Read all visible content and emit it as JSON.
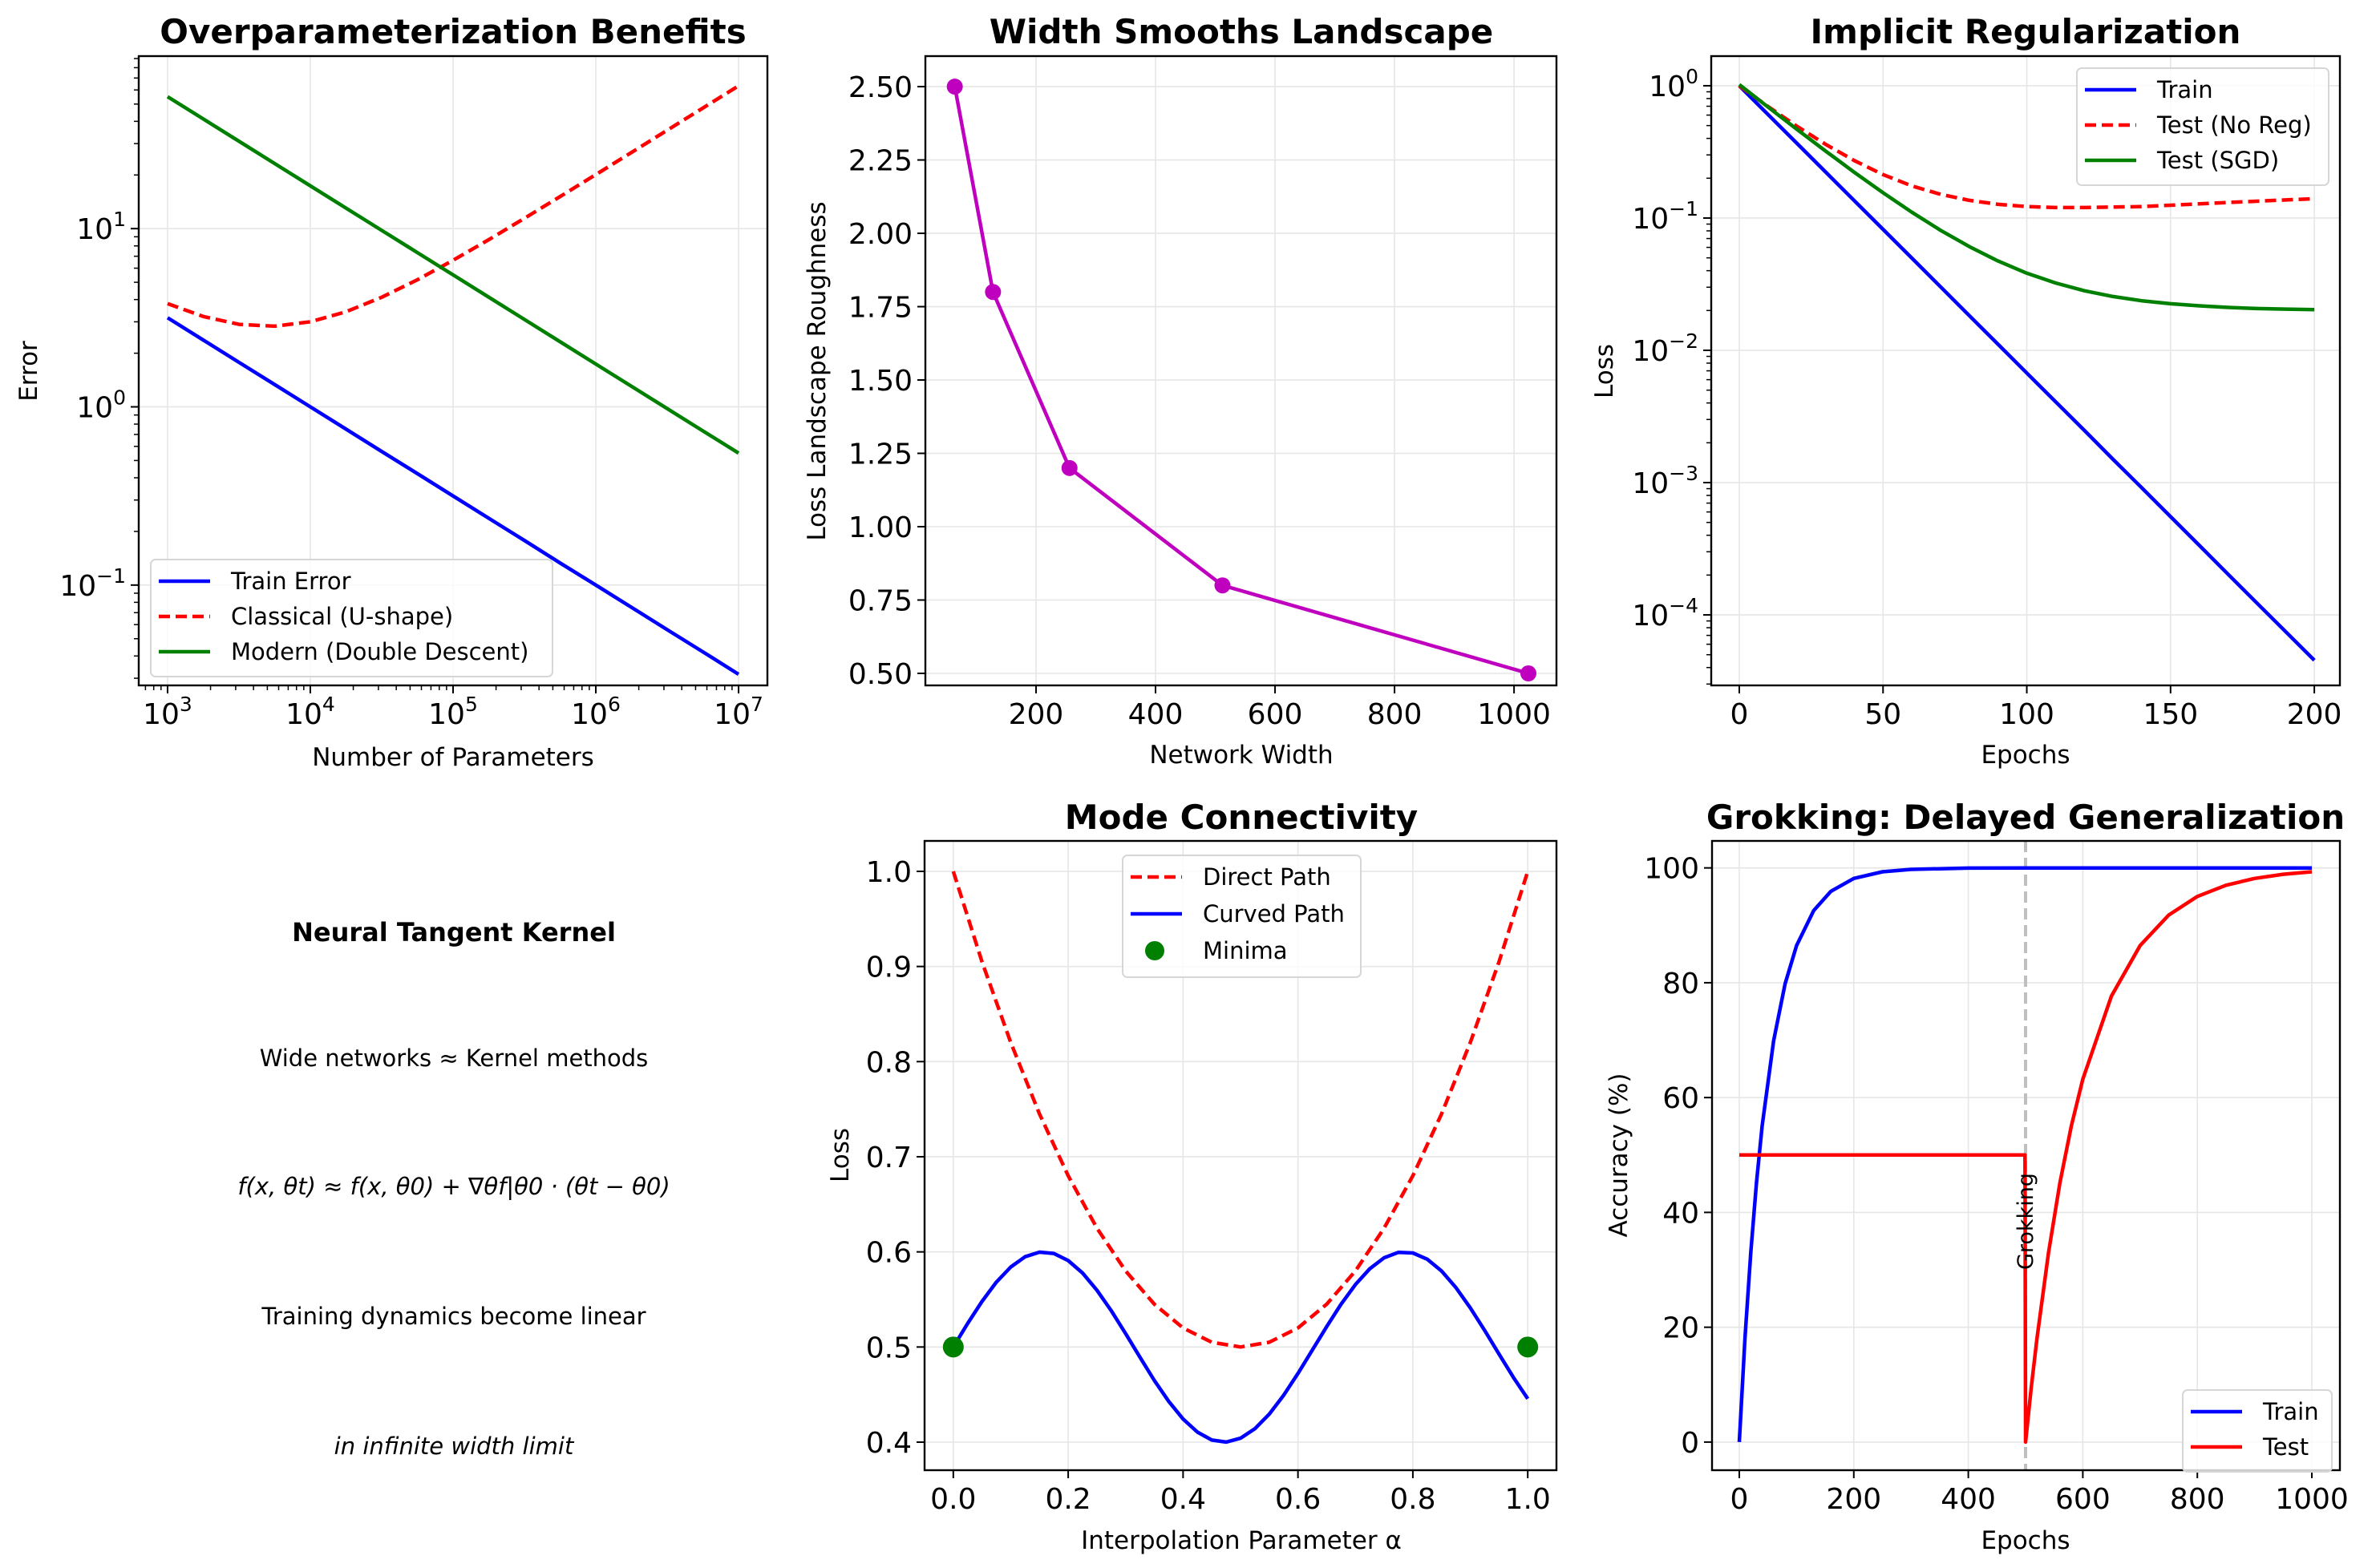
{
  "figure": {
    "ntk_panel": {
      "title": "Neural Tangent Kernel",
      "lines": [
        "Wide networks ≈ Kernel methods",
        "f(x, θt) ≈ f(x, θ0) + ∇θf|θ0 · (θt − θ0)",
        "Training dynamics become linear",
        "in infinite width limit"
      ]
    }
  },
  "chart_data": [
    {
      "id": "overparam",
      "type": "line",
      "title": "Overparameterization Benefits",
      "xlabel": "Number of Parameters",
      "ylabel": "Error",
      "xscale": "log",
      "yscale": "log",
      "xlim_log10": [
        2.798,
        7.202
      ],
      "ylim_log10": [
        -1.563,
        1.968
      ],
      "xticks_exp": [
        3,
        4,
        5,
        6,
        7
      ],
      "yticks_exp": [
        -1,
        0,
        1
      ],
      "grid": true,
      "legend": "lower-left",
      "x": [
        1000,
        1778,
        3162,
        5623,
        10000,
        17783,
        31623,
        56234,
        100000,
        177828,
        316228,
        562341,
        1000000,
        1778279,
        3162278,
        5623413,
        10000000
      ],
      "series": [
        {
          "name": "Train Error",
          "color": "#0000ff",
          "style": "solid",
          "values": [
            3.162,
            2.371,
            1.778,
            1.334,
            1.0,
            0.75,
            0.562,
            0.422,
            0.316,
            0.237,
            0.178,
            0.133,
            0.1,
            0.075,
            0.0562,
            0.0422,
            0.0316
          ]
        },
        {
          "name": "Classical (U-shape)",
          "color": "#ff0000",
          "style": "dashed",
          "values": [
            3.795,
            3.215,
            2.903,
            2.834,
            3.0,
            3.417,
            4.119,
            5.165,
            6.641,
            8.671,
            11.425,
            15.131,
            20.1,
            26.745,
            35.622,
            47.47,
            63.28
          ]
        },
        {
          "name": "Modern (Double Descent)",
          "color": "#008000",
          "style": "solid",
          "values": [
            55.0,
            41.24,
            30.93,
            23.19,
            17.39,
            13.04,
            9.78,
            7.334,
            5.5,
            4.124,
            3.093,
            2.319,
            1.739,
            1.304,
            0.978,
            0.733,
            0.55
          ]
        }
      ]
    },
    {
      "id": "width",
      "type": "line",
      "title": "Width Smooths Landscape",
      "xlabel": "Network Width",
      "ylabel": "Loss Landscape Roughness",
      "xlim": [
        14.8,
        1071
      ],
      "ylim": [
        0.459,
        2.604
      ],
      "xticks": [
        200,
        400,
        600,
        800,
        1000
      ],
      "yticks": [
        0.5,
        0.75,
        1.0,
        1.25,
        1.5,
        1.75,
        2.0,
        2.25,
        2.5
      ],
      "ytick_decimals": 2,
      "grid": true,
      "x": [
        64,
        128,
        256,
        512,
        1024
      ],
      "series": [
        {
          "name": "Roughness",
          "color": "#bf00bf",
          "style": "solid",
          "marker": "o",
          "values": [
            2.5,
            1.8,
            1.2,
            0.8,
            0.5
          ]
        }
      ]
    },
    {
      "id": "implicit",
      "type": "line",
      "title": "Implicit Regularization",
      "xlabel": "Epochs",
      "ylabel": "Loss",
      "xlim": [
        -9.76,
        208.9
      ],
      "yscale": "log",
      "ylim_log10": [
        -4.533,
        0.224
      ],
      "xticks": [
        0,
        50,
        100,
        150,
        200
      ],
      "yticks_exp": [
        -4,
        -3,
        -2,
        -1,
        0
      ],
      "grid": true,
      "legend": "upper-right",
      "x": [
        0,
        10,
        20,
        30,
        40,
        50,
        60,
        70,
        80,
        90,
        100,
        110,
        120,
        130,
        140,
        150,
        160,
        170,
        180,
        190,
        200
      ],
      "series": [
        {
          "name": "Train",
          "color": "#0000ff",
          "style": "solid",
          "values": [
            1.0,
            0.6065,
            0.3679,
            0.2231,
            0.1353,
            0.0821,
            0.0498,
            0.0302,
            0.0183,
            0.0111,
            0.00674,
            0.00409,
            0.00248,
            0.0015,
            0.000912,
            0.000553,
            0.000335,
            0.000203,
            0.000123,
            7.49e-05,
            4.54e-05
          ]
        },
        {
          "name": "Test (No Reg)",
          "color": "#ff0000",
          "style": "dashed",
          "values": [
            1.0,
            0.697,
            0.495,
            0.361,
            0.272,
            0.213,
            0.175,
            0.151,
            0.136,
            0.127,
            0.122,
            0.12,
            0.12,
            0.121,
            0.122,
            0.125,
            0.128,
            0.131,
            0.134,
            0.137,
            0.14
          ]
        },
        {
          "name": "Test (SGD)",
          "color": "#008000",
          "style": "solid",
          "values": [
            1.02,
            0.6903,
            0.4693,
            0.3212,
            0.2219,
            0.1553,
            0.1107,
            0.0808,
            0.0608,
            0.0473,
            0.0383,
            0.0323,
            0.0282,
            0.0255,
            0.0237,
            0.0225,
            0.0217,
            0.0211,
            0.0207,
            0.0205,
            0.0203
          ]
        }
      ]
    },
    {
      "id": "mode",
      "type": "line",
      "title": "Mode Connectivity",
      "xlabel": "Interpolation Parameter α",
      "ylabel": "Loss",
      "xlim": [
        -0.05,
        1.05
      ],
      "ylim": [
        0.3705,
        1.032
      ],
      "xticks": [
        0.0,
        0.2,
        0.4,
        0.6,
        0.8,
        1.0
      ],
      "yticks": [
        0.4,
        0.5,
        0.6,
        0.7,
        0.8,
        0.9,
        1.0
      ],
      "xtick_decimals": 1,
      "ytick_decimals": 1,
      "grid": true,
      "legend": "upper-center",
      "series": [
        {
          "name": "Direct Path",
          "color": "#ff0000",
          "style": "dashed",
          "x": [
            0,
            0.05,
            0.1,
            0.15,
            0.2,
            0.25,
            0.3,
            0.35,
            0.4,
            0.45,
            0.5,
            0.55,
            0.6,
            0.65,
            0.7,
            0.75,
            0.8,
            0.85,
            0.9,
            0.95,
            1.0
          ],
          "values": [
            1.0,
            0.905,
            0.82,
            0.745,
            0.68,
            0.625,
            0.58,
            0.545,
            0.52,
            0.505,
            0.5,
            0.505,
            0.52,
            0.545,
            0.58,
            0.625,
            0.68,
            0.745,
            0.82,
            0.905,
            1.0
          ]
        },
        {
          "name": "Curved Path",
          "color": "#0000ff",
          "style": "solid",
          "x": [
            0,
            0.025,
            0.05,
            0.075,
            0.1,
            0.125,
            0.15,
            0.175,
            0.2,
            0.225,
            0.25,
            0.275,
            0.3,
            0.325,
            0.35,
            0.375,
            0.4,
            0.425,
            0.45,
            0.475,
            0.5,
            0.525,
            0.55,
            0.575,
            0.6,
            0.625,
            0.65,
            0.675,
            0.7,
            0.725,
            0.75,
            0.775,
            0.8,
            0.825,
            0.85,
            0.875,
            0.9,
            0.925,
            0.95,
            0.975,
            1.0
          ],
          "values": [
            0.5,
            0.5247,
            0.5479,
            0.5682,
            0.5841,
            0.5949,
            0.5997,
            0.5984,
            0.5909,
            0.5778,
            0.5598,
            0.5382,
            0.5141,
            0.4892,
            0.4649,
            0.4428,
            0.4243,
            0.4105,
            0.4022,
            0.4001,
            0.4041,
            0.4141,
            0.4294,
            0.4492,
            0.4721,
            0.4967,
            0.5215,
            0.545,
            0.5657,
            0.5823,
            0.5938,
            0.5995,
            0.5989,
            0.5923,
            0.5799,
            0.5625,
            0.5412,
            0.5174,
            0.4925,
            0.4681,
            0.4456
          ]
        },
        {
          "name": "Minima",
          "color": "#008000",
          "style": "scatter",
          "x": [
            0.0,
            1.0
          ],
          "values": [
            0.5,
            0.5
          ]
        }
      ]
    },
    {
      "id": "grokking",
      "type": "line",
      "title": "Grokking: Delayed Generalization",
      "xlabel": "Epochs",
      "ylabel": "Accuracy (%)",
      "xlim": [
        -47.6,
        1049
      ],
      "ylim": [
        -4.9,
        104.7
      ],
      "xticks": [
        0,
        200,
        400,
        600,
        800,
        1000
      ],
      "yticks": [
        0,
        20,
        40,
        60,
        80,
        100
      ],
      "grid": true,
      "legend": "lower-right",
      "vline": {
        "x": 500,
        "color": "#bfbfbf",
        "style": "dashed"
      },
      "annotation": {
        "text": "Grokking",
        "x": 500,
        "y": 30,
        "rotation": 90
      },
      "series": [
        {
          "name": "Train",
          "color": "#0000ff",
          "style": "solid",
          "x": [
            0,
            10,
            20,
            30,
            40,
            60,
            80,
            100,
            130,
            160,
            200,
            250,
            300,
            400,
            500,
            600,
            700,
            800,
            900,
            1000
          ],
          "values": [
            0,
            18.13,
            32.97,
            45.12,
            55.07,
            69.88,
            79.81,
            86.47,
            92.57,
            95.92,
            98.17,
            99.33,
            99.75,
            99.97,
            100,
            100,
            100,
            100,
            100,
            100
          ]
        },
        {
          "name": "Test",
          "color": "#ff0000",
          "style": "solid",
          "x": [
            0,
            499,
            500,
            510,
            520,
            540,
            560,
            580,
            600,
            650,
            700,
            750,
            800,
            850,
            900,
            950,
            1000
          ],
          "values": [
            50,
            50,
            0,
            9.52,
            18.13,
            32.97,
            45.12,
            55.07,
            63.21,
            77.69,
            86.47,
            91.79,
            95.02,
            96.98,
            98.17,
            98.89,
            99.33
          ]
        }
      ]
    }
  ]
}
